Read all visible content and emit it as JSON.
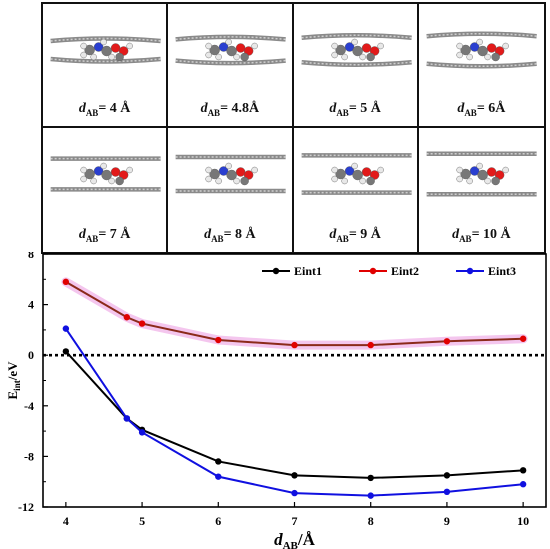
{
  "panels": [
    {
      "d": "4 Å"
    },
    {
      "d": "4.8Å"
    },
    {
      "d": "5 Å"
    },
    {
      "d": "6Å"
    },
    {
      "d": "7 Å"
    },
    {
      "d": "8 Å"
    },
    {
      "d": "9 Å"
    },
    {
      "d": "10 Å"
    }
  ],
  "panel_label_prefix": "d",
  "panel_label_sub": "AB",
  "panel_label_eq": "= ",
  "chart_data": {
    "type": "line",
    "title": "",
    "xlabel_main": "d",
    "xlabel_sub": "AB",
    "xlabel_unit": "/Å",
    "ylabel_main": "E",
    "ylabel_sub": "int",
    "ylabel_unit": "/eV",
    "xlim": [
      4,
      10
    ],
    "ylim": [
      -12,
      8
    ],
    "xticks": [
      4,
      5,
      6,
      7,
      8,
      9,
      10
    ],
    "yticks": [
      -12,
      -8,
      -4,
      0,
      4,
      8
    ],
    "grid": false,
    "legend": "top-right",
    "reference_line": 0,
    "x": [
      4,
      4.8,
      5,
      6,
      7,
      8,
      9,
      10
    ],
    "series": [
      {
        "name": "Eint1",
        "color": "#000000",
        "values": [
          0.3,
          -5.0,
          -5.9,
          -8.4,
          -9.5,
          -9.7,
          -9.5,
          -9.1
        ]
      },
      {
        "name": "Eint2",
        "color": "#e00000",
        "values": [
          5.8,
          3.0,
          2.5,
          1.2,
          0.8,
          0.8,
          1.1,
          1.3
        ]
      },
      {
        "name": "Eint3",
        "color": "#1010e0",
        "values": [
          2.1,
          -5.0,
          -6.1,
          -9.6,
          -10.9,
          -11.1,
          -10.8,
          -10.2
        ]
      }
    ]
  }
}
